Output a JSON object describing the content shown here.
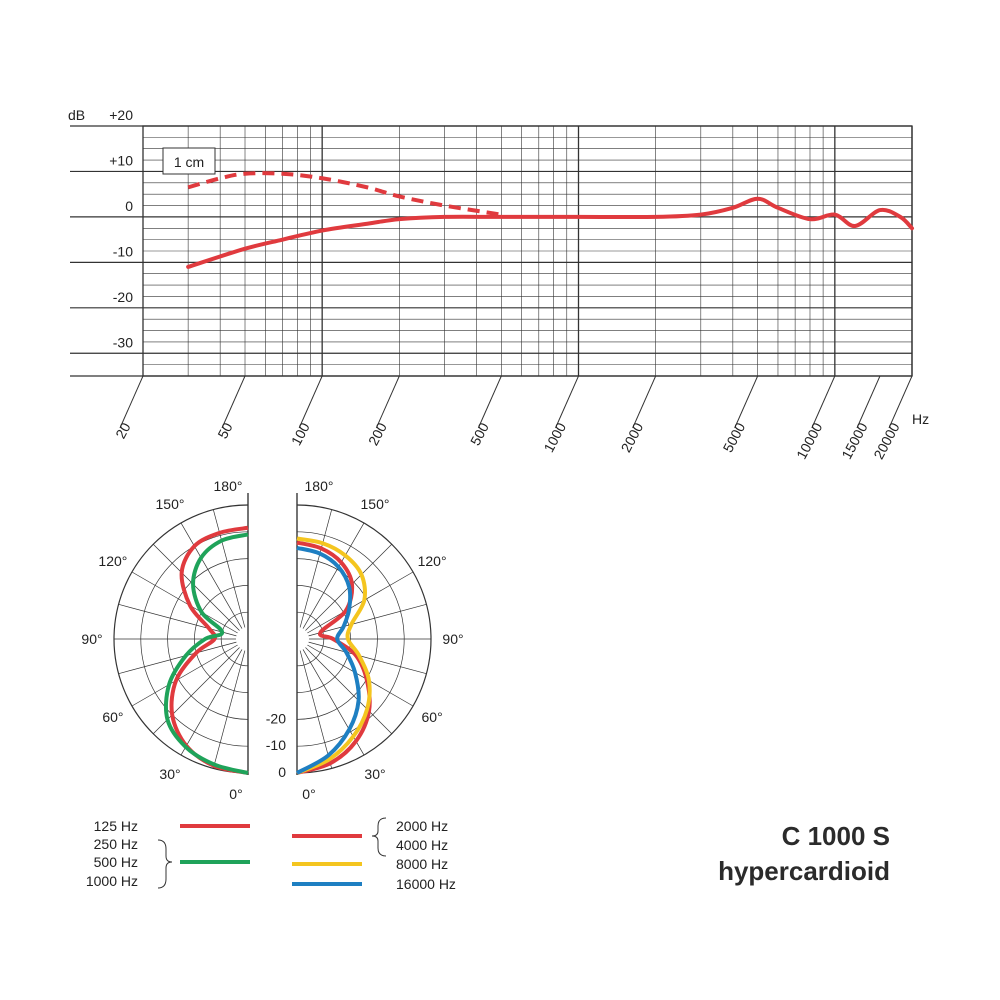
{
  "product": {
    "model": "C 1000 S",
    "pattern": "hypercardioid"
  },
  "colors": {
    "red": "#e03a3e",
    "green": "#1fa35a",
    "yellow": "#f4c51f",
    "blue": "#1e7fc2",
    "grid": "#333333"
  },
  "chart_data": [
    {
      "type": "line",
      "name": "frequency-response",
      "xscale": "log",
      "xlim": [
        20,
        20000
      ],
      "ylim": [
        -35,
        20
      ],
      "x_unit": "Hz",
      "y_unit": "dB",
      "y_ticks": [
        "+20",
        "+10",
        "0",
        "-10",
        "-20",
        "-30"
      ],
      "x_ticks": [
        "20",
        "50",
        "100",
        "200",
        "500",
        "1000",
        "2000",
        "5000",
        "10000",
        "15000",
        "20000"
      ],
      "annotation": "1 cm",
      "series": [
        {
          "style": "solid",
          "color": "#e03a3e",
          "x": [
            30,
            50,
            70,
            100,
            150,
            200,
            300,
            500,
            1000,
            2000,
            3000,
            4000,
            5000,
            6000,
            8000,
            10000,
            12000,
            15000,
            18000,
            20000
          ],
          "y": [
            -11,
            -7,
            -5,
            -3,
            -1.5,
            -0.5,
            0,
            0,
            0,
            0,
            0.5,
            2,
            4,
            2,
            -0.5,
            0.5,
            -2,
            1.5,
            0,
            -2.5
          ]
        },
        {
          "style": "dashed",
          "color": "#e03a3e",
          "x": [
            30,
            40,
            50,
            70,
            100,
            150,
            200,
            300,
            500
          ],
          "y": [
            6.5,
            8.5,
            9.5,
            9.5,
            8.5,
            6.5,
            4.5,
            2.5,
            0.5
          ]
        }
      ]
    },
    {
      "type": "polar",
      "name": "polar-pattern",
      "angle_ticks": [
        "0°",
        "30°",
        "60°",
        "90°",
        "120°",
        "150°",
        "180°"
      ],
      "radial_ticks": [
        "0",
        "-10",
        "-20"
      ],
      "legend_left": {
        "red_group": [
          "125 Hz"
        ],
        "green_group": [
          "250 Hz",
          "500 Hz",
          "1000 Hz"
        ]
      },
      "legend_right": {
        "red_group": [
          "2000 Hz",
          "4000 Hz"
        ],
        "yellow": [
          "8000 Hz"
        ],
        "blue": [
          "16000 Hz"
        ]
      },
      "series": [
        {
          "side": "left",
          "color": "#e03a3e",
          "label": "125 Hz"
        },
        {
          "side": "left",
          "color": "#1fa35a",
          "label": "250 Hz / 500 Hz / 1000 Hz"
        },
        {
          "side": "right",
          "color": "#e03a3e",
          "label": "2000 Hz / 4000 Hz"
        },
        {
          "side": "right",
          "color": "#f4c51f",
          "label": "8000 Hz"
        },
        {
          "side": "right",
          "color": "#1e7fc2",
          "label": "16000 Hz"
        }
      ]
    }
  ]
}
